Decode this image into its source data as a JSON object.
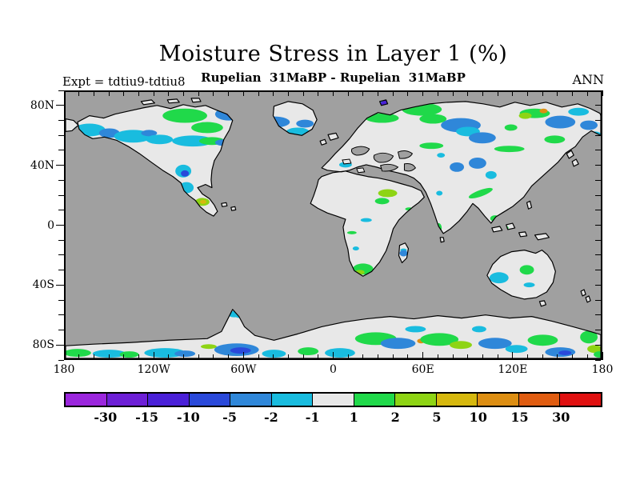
{
  "header": {
    "title": "Moisture Stress in Layer 1 (%)",
    "subtitle": "Rupelian  31MaBP - Rupelian  31MaBP",
    "experiment_label": "Expt = tdtiu9-tdtiu8",
    "season_label": "ANN"
  },
  "axes": {
    "lat_tick_labels": [
      "80N",
      "40N",
      "0",
      "40S",
      "80S"
    ],
    "lon_tick_labels": [
      "180",
      "120W",
      "60W",
      "0",
      "60E",
      "120E",
      "180"
    ]
  },
  "colorbar": {
    "tick_labels": [
      "-30",
      "-15",
      "-10",
      "-5",
      "-2",
      "-1",
      "1",
      "2",
      "5",
      "10",
      "15",
      "30"
    ],
    "colors": [
      "#9b26dd",
      "#6d1fd6",
      "#4a20d8",
      "#2a49da",
      "#2f87d9",
      "#19bcdf",
      "#e8e8e8",
      "#20d94a",
      "#8ed414",
      "#d6b80e",
      "#dd8e12",
      "#e05c10",
      "#e01010"
    ]
  },
  "map_colors": {
    "ocean": "#a0a0a0",
    "land": "#e8e8e8",
    "coastline": "#000000"
  },
  "chart_data": {
    "type": "heatmap",
    "subtype": "filled_contour_world_map",
    "title": "Moisture Stress in Layer 1 (%)",
    "subtitle": "Rupelian  31MaBP - Rupelian  31MaBP",
    "experiment_difference": "tdtiu9-tdtiu8",
    "time_mean": "ANN",
    "units": "%",
    "projection": "equirectangular",
    "lon_axis": {
      "range": [
        -180,
        180
      ],
      "labeled_ticks_deg": [
        -180,
        -120,
        -60,
        0,
        60,
        120,
        180
      ],
      "minor_tick_deg": 10
    },
    "lat_axis": {
      "range": [
        -90,
        90
      ],
      "labeled_ticks_deg": [
        80,
        40,
        0,
        -40,
        -80
      ],
      "minor_tick_deg": 10
    },
    "contour_levels": [
      -30,
      -15,
      -10,
      -5,
      -2,
      -1,
      1,
      2,
      5,
      10,
      15,
      30
    ],
    "palette": [
      "#9b26dd",
      "#6d1fd6",
      "#4a20d8",
      "#2a49da",
      "#2f87d9",
      "#19bcdf",
      "#e8e8e8",
      "#20d94a",
      "#8ed414",
      "#d6b80e",
      "#dd8e12",
      "#e05c10",
      "#e01010"
    ],
    "ocean_mask_color": "#a0a0a0",
    "neutral_band_color": "#e8e8e8",
    "legend_position": "bottom",
    "grid": false,
    "anomaly_regions": [
      {
        "region": "Alaska and northern Canada",
        "sign": "mixed",
        "approx_range_pct": [
          -10,
          5
        ]
      },
      {
        "region": "Greenland",
        "sign": "negative",
        "approx_range_pct": [
          -5,
          -1
        ]
      },
      {
        "region": "Scandinavia and western Siberia",
        "sign": "positive",
        "approx_range_pct": [
          1,
          5
        ]
      },
      {
        "region": "Urals area (~60E, 65N)",
        "sign": "negative",
        "approx_range_pct": [
          -15,
          -5
        ]
      },
      {
        "region": "central and eastern Siberia",
        "sign": "mixed",
        "approx_range_pct": [
          -5,
          5
        ]
      },
      {
        "region": "Mediterranean / Paratethys shores",
        "sign": "negative",
        "approx_range_pct": [
          -2,
          -1
        ]
      },
      {
        "region": "Middle East / NE Africa",
        "sign": "positive",
        "approx_range_pct": [
          1,
          5
        ]
      },
      {
        "region": "Central America",
        "sign": "positive",
        "approx_range_pct": [
          2,
          10
        ]
      },
      {
        "region": "northern South America (Amazon)",
        "sign": "negative",
        "approx_range_pct": [
          -10,
          -2
        ]
      },
      {
        "region": "southern South America",
        "sign": "positive",
        "approx_range_pct": [
          1,
          5
        ]
      },
      {
        "region": "southern Africa",
        "sign": "positive",
        "approx_range_pct": [
          1,
          2
        ]
      },
      {
        "region": "Madagascar",
        "sign": "negative",
        "approx_range_pct": [
          -5,
          -2
        ]
      },
      {
        "region": "southern India / SE Asia",
        "sign": "positive",
        "approx_range_pct": [
          1,
          2
        ]
      },
      {
        "region": "Australia",
        "sign": "mixed",
        "approx_range_pct": [
          -2,
          2
        ]
      },
      {
        "region": "Antarctica coastal band",
        "sign": "mixed",
        "approx_range_pct": [
          -10,
          10
        ]
      }
    ]
  }
}
